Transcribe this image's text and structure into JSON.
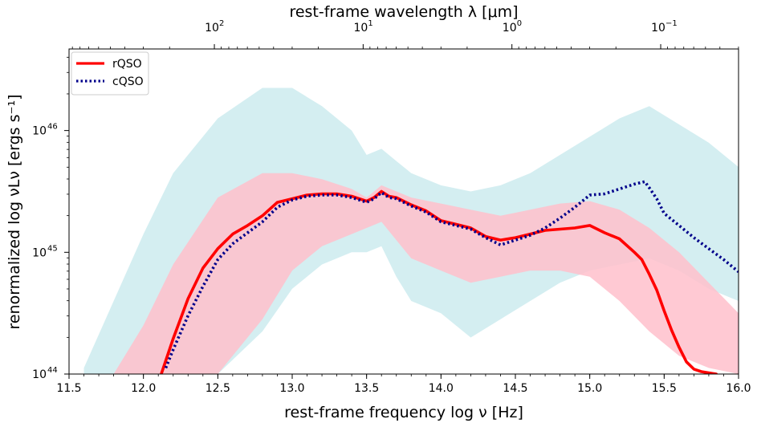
{
  "chart_data": {
    "type": "line",
    "xlabel": "rest-frame frequency log ν [Hz]",
    "x2label": "rest-frame wavelength λ [μm]",
    "ylabel": "renormalized log νLν [ergs s⁻¹]",
    "xlim": [
      11.5,
      16.0
    ],
    "ylim": [
      44.0,
      46.67
    ],
    "y_scale": "log",
    "x_ticks": [
      "11.5",
      "12.0",
      "12.5",
      "13.0",
      "13.5",
      "14.0",
      "14.5",
      "15.0",
      "15.5",
      "16.0"
    ],
    "y_ticks": [
      {
        "base": "10",
        "exp": "44",
        "value": 44
      },
      {
        "base": "10",
        "exp": "45",
        "value": 45
      },
      {
        "base": "10",
        "exp": "46",
        "value": 46
      }
    ],
    "top_ticks": [
      {
        "base": "10",
        "exp": "2",
        "value": 2
      },
      {
        "base": "10",
        "exp": "1",
        "value": 1
      },
      {
        "base": "10",
        "exp": "0",
        "value": 0
      },
      {
        "base": "10",
        "exp": "−1",
        "value": -1
      }
    ],
    "legend_position": "top-left",
    "series": [
      {
        "name": "rQSO",
        "color": "#ff0000",
        "style": "solid",
        "x": [
          12.12,
          12.2,
          12.3,
          12.4,
          12.5,
          12.6,
          12.7,
          12.8,
          12.9,
          13.0,
          13.1,
          13.2,
          13.3,
          13.4,
          13.5,
          13.55,
          13.6,
          13.65,
          13.7,
          13.8,
          13.9,
          14.0,
          14.1,
          14.2,
          14.3,
          14.4,
          14.5,
          14.6,
          14.7,
          14.8,
          14.9,
          15.0,
          15.1,
          15.2,
          15.3,
          15.35,
          15.4,
          15.45,
          15.5,
          15.55,
          15.6,
          15.65,
          15.7,
          15.75,
          15.8,
          15.85
        ],
        "y": [
          44.0,
          44.29,
          44.62,
          44.87,
          45.03,
          45.15,
          45.22,
          45.3,
          45.41,
          45.44,
          45.47,
          45.48,
          45.48,
          45.46,
          45.42,
          45.45,
          45.5,
          45.46,
          45.45,
          45.39,
          45.34,
          45.26,
          45.23,
          45.2,
          45.13,
          45.1,
          45.12,
          45.15,
          45.18,
          45.19,
          45.2,
          45.22,
          45.16,
          45.11,
          45.0,
          44.94,
          44.82,
          44.69,
          44.52,
          44.36,
          44.22,
          44.1,
          44.04,
          44.02,
          44.01,
          44.0
        ]
      },
      {
        "name": "cQSO",
        "color": "#00008b",
        "style": "dotted",
        "x": [
          12.15,
          12.2,
          12.3,
          12.4,
          12.5,
          12.6,
          12.7,
          12.8,
          12.9,
          13.0,
          13.1,
          13.2,
          13.3,
          13.4,
          13.5,
          13.55,
          13.6,
          13.65,
          13.7,
          13.8,
          13.9,
          14.0,
          14.1,
          14.2,
          14.3,
          14.4,
          14.5,
          14.6,
          14.7,
          14.8,
          14.9,
          15.0,
          15.1,
          15.2,
          15.3,
          15.37,
          15.4,
          15.45,
          15.5,
          15.6,
          15.7,
          15.8,
          15.9,
          16.0
        ],
        "y": [
          44.05,
          44.2,
          44.48,
          44.72,
          44.94,
          45.07,
          45.16,
          45.25,
          45.37,
          45.43,
          45.46,
          45.47,
          45.47,
          45.45,
          45.41,
          45.44,
          45.49,
          45.45,
          45.44,
          45.38,
          45.33,
          45.25,
          45.22,
          45.19,
          45.12,
          45.06,
          45.1,
          45.14,
          45.2,
          45.28,
          45.37,
          45.47,
          45.48,
          45.52,
          45.56,
          45.58,
          45.53,
          45.44,
          45.32,
          45.22,
          45.12,
          45.03,
          44.94,
          44.84
        ]
      }
    ],
    "background_bands": [
      {
        "color": "#b0e0e6",
        "x": [
          11.6,
          11.8,
          12.0,
          12.2,
          12.5,
          12.8,
          13.0,
          13.2,
          13.4,
          13.5,
          13.6,
          13.7,
          13.8,
          14.0,
          14.2,
          14.4,
          14.6,
          14.8,
          15.0,
          15.2,
          15.4,
          15.6,
          15.8,
          16.0
        ],
        "upper": [
          44.05,
          44.6,
          45.15,
          45.65,
          46.1,
          46.35,
          46.35,
          46.2,
          46.0,
          45.8,
          45.85,
          45.75,
          45.65,
          45.55,
          45.5,
          45.55,
          45.65,
          45.8,
          45.95,
          46.1,
          46.2,
          46.05,
          45.9,
          45.7
        ],
        "lower": [
          44.0,
          44.0,
          44.0,
          44.0,
          44.0,
          44.35,
          44.7,
          44.9,
          45.0,
          45.0,
          45.05,
          44.8,
          44.6,
          44.5,
          44.3,
          44.45,
          44.6,
          44.75,
          44.85,
          44.9,
          44.95,
          44.85,
          44.7,
          44.6
        ]
      },
      {
        "color": "#ffc0cb",
        "x": [
          11.8,
          12.0,
          12.2,
          12.5,
          12.8,
          13.0,
          13.2,
          13.4,
          13.5,
          13.6,
          13.7,
          13.8,
          14.0,
          14.2,
          14.4,
          14.6,
          14.8,
          15.0,
          15.2,
          15.4,
          15.6,
          15.8,
          16.0
        ],
        "upper": [
          44.0,
          44.4,
          44.9,
          45.45,
          45.65,
          45.65,
          45.6,
          45.52,
          45.45,
          45.55,
          45.5,
          45.45,
          45.4,
          45.35,
          45.3,
          45.35,
          45.4,
          45.42,
          45.35,
          45.2,
          45.0,
          44.75,
          44.5
        ],
        "lower": [
          44.0,
          44.0,
          44.0,
          44.0,
          44.45,
          44.85,
          45.05,
          45.15,
          45.2,
          45.25,
          45.1,
          44.95,
          44.85,
          44.75,
          44.8,
          44.85,
          44.85,
          44.8,
          44.6,
          44.35,
          44.15,
          44.05,
          44.0
        ]
      }
    ]
  }
}
